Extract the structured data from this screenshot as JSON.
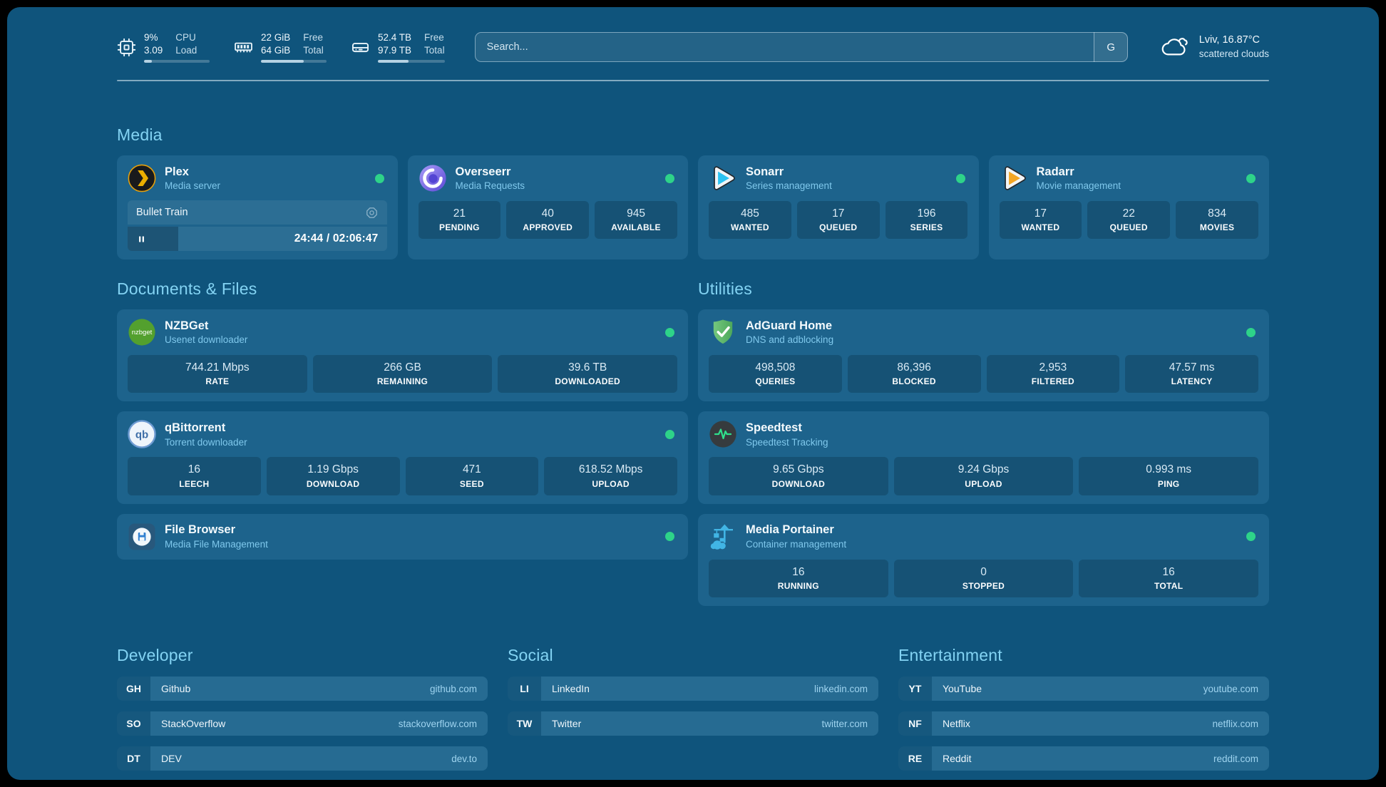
{
  "colors": {
    "page_bg": "#0f547c",
    "card_bg": "#1d638c",
    "section_title": "#83d3f3",
    "subtitle_text": "#7fc8ec",
    "status_online_green": "#2ed389",
    "bookmark_url_text": "#9ed3ef",
    "plex_gold": "#e5a00d",
    "sonarr_cyan": "#2cc3f2",
    "radarr_orange": "#f5a623"
  },
  "topbar": {
    "resources": [
      {
        "icon": "cpu-icon",
        "values": [
          "9%",
          "3.09"
        ],
        "labels": [
          "CPU",
          "Load"
        ],
        "progress_pct": 12
      },
      {
        "icon": "memory-icon",
        "values": [
          "22 GiB",
          "64 GiB"
        ],
        "labels": [
          "Free",
          "Total"
        ],
        "progress_pct": 65
      },
      {
        "icon": "disk-icon",
        "values": [
          "52.4 TB",
          "97.9 TB"
        ],
        "labels": [
          "Free",
          "Total"
        ],
        "progress_pct": 46
      }
    ],
    "search": {
      "placeholder": "Search...",
      "button_label": "G"
    },
    "weather": {
      "icon": "scattered-clouds-icon",
      "location": "Lviv, 16.87°C",
      "condition": "scattered clouds"
    }
  },
  "media": {
    "title": "Media",
    "plex": {
      "name": "Plex",
      "subtitle": "Media server",
      "online": true,
      "now_playing": {
        "title": "Bullet Train",
        "time": "24:44 / 02:06:47",
        "progress_pct": 19.5,
        "state": "paused"
      }
    },
    "overseerr": {
      "name": "Overseerr",
      "subtitle": "Media Requests",
      "online": true,
      "stats": [
        {
          "value": "21",
          "label": "PENDING"
        },
        {
          "value": "40",
          "label": "APPROVED"
        },
        {
          "value": "945",
          "label": "AVAILABLE"
        }
      ]
    },
    "sonarr": {
      "name": "Sonarr",
      "subtitle": "Series management",
      "online": true,
      "stats": [
        {
          "value": "485",
          "label": "WANTED"
        },
        {
          "value": "17",
          "label": "QUEUED"
        },
        {
          "value": "196",
          "label": "SERIES"
        }
      ]
    },
    "radarr": {
      "name": "Radarr",
      "subtitle": "Movie management",
      "online": true,
      "stats": [
        {
          "value": "17",
          "label": "WANTED"
        },
        {
          "value": "22",
          "label": "QUEUED"
        },
        {
          "value": "834",
          "label": "MOVIES"
        }
      ]
    }
  },
  "documents": {
    "title": "Documents & Files",
    "nzbget": {
      "name": "NZBGet",
      "subtitle": "Usenet downloader",
      "online": true,
      "stats": [
        {
          "value": "744.21 Mbps",
          "label": "RATE"
        },
        {
          "value": "266 GB",
          "label": "REMAINING"
        },
        {
          "value": "39.6 TB",
          "label": "DOWNLOADED"
        }
      ]
    },
    "qbittorrent": {
      "name": "qBittorrent",
      "subtitle": "Torrent downloader",
      "online": true,
      "stats": [
        {
          "value": "16",
          "label": "LEECH"
        },
        {
          "value": "1.19 Gbps",
          "label": "DOWNLOAD"
        },
        {
          "value": "471",
          "label": "SEED"
        },
        {
          "value": "618.52 Mbps",
          "label": "UPLOAD"
        }
      ]
    },
    "filebrowser": {
      "name": "File Browser",
      "subtitle": "Media File Management",
      "online": true
    }
  },
  "utilities": {
    "title": "Utilities",
    "adguard": {
      "name": "AdGuard Home",
      "subtitle": "DNS and adblocking",
      "online": true,
      "stats": [
        {
          "value": "498,508",
          "label": "QUERIES"
        },
        {
          "value": "86,396",
          "label": "BLOCKED"
        },
        {
          "value": "2,953",
          "label": "FILTERED"
        },
        {
          "value": "47.57 ms",
          "label": "LATENCY"
        }
      ]
    },
    "speedtest": {
      "name": "Speedtest",
      "subtitle": "Speedtest Tracking",
      "stats": [
        {
          "value": "9.65 Gbps",
          "label": "DOWNLOAD"
        },
        {
          "value": "9.24 Gbps",
          "label": "UPLOAD"
        },
        {
          "value": "0.993 ms",
          "label": "PING"
        }
      ]
    },
    "portainer": {
      "name": "Media Portainer",
      "subtitle": "Container management",
      "online": true,
      "stats": [
        {
          "value": "16",
          "label": "RUNNING"
        },
        {
          "value": "0",
          "label": "STOPPED"
        },
        {
          "value": "16",
          "label": "TOTAL"
        }
      ]
    }
  },
  "bookmarks": [
    {
      "title": "Developer",
      "items": [
        {
          "abbr": "GH",
          "name": "Github",
          "url": "github.com"
        },
        {
          "abbr": "SO",
          "name": "StackOverflow",
          "url": "stackoverflow.com"
        },
        {
          "abbr": "DT",
          "name": "DEV",
          "url": "dev.to"
        }
      ]
    },
    {
      "title": "Social",
      "items": [
        {
          "abbr": "LI",
          "name": "LinkedIn",
          "url": "linkedin.com"
        },
        {
          "abbr": "TW",
          "name": "Twitter",
          "url": "twitter.com"
        }
      ]
    },
    {
      "title": "Entertainment",
      "items": [
        {
          "abbr": "YT",
          "name": "YouTube",
          "url": "youtube.com"
        },
        {
          "abbr": "NF",
          "name": "Netflix",
          "url": "netflix.com"
        },
        {
          "abbr": "RE",
          "name": "Reddit",
          "url": "reddit.com"
        }
      ]
    }
  ]
}
